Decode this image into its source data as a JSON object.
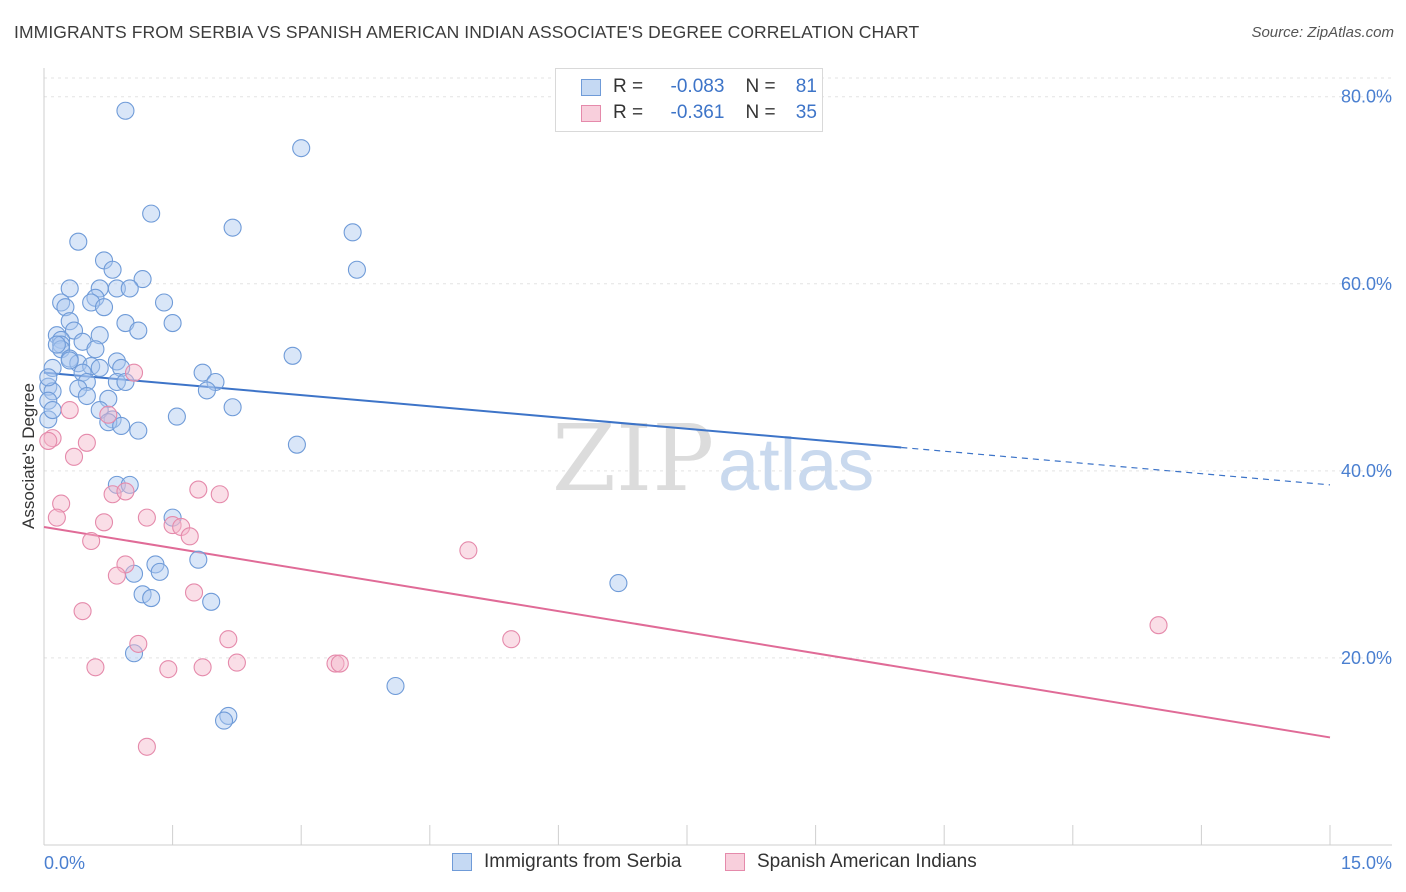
{
  "title": "IMMIGRANTS FROM SERBIA VS SPANISH AMERICAN INDIAN ASSOCIATE'S DEGREE CORRELATION CHART",
  "source": "Source: ZipAtlas.com",
  "watermark": {
    "zip": "ZIP",
    "atlas": "atlas"
  },
  "colors": {
    "blue": "#3d74c8",
    "blue_fill": "#aac8ef",
    "pink": "#e06b97",
    "pink_fill": "#f5b6ca",
    "axis_text": "#4a7fd0"
  },
  "legend_top": {
    "rows": [
      {
        "r_label": "R =",
        "r_value": "-0.083",
        "n_label": "N =",
        "n_value": "81"
      },
      {
        "r_label": "R =",
        "r_value": "-0.361",
        "n_label": "N =",
        "n_value": "35"
      }
    ]
  },
  "legend_bottom": {
    "series1": "Immigrants from Serbia",
    "series2": "Spanish American Indians"
  },
  "chart_data": {
    "type": "scatter",
    "title": "IMMIGRANTS FROM SERBIA VS SPANISH AMERICAN INDIAN ASSOCIATE'S DEGREE CORRELATION CHART",
    "xlabel": "",
    "ylabel": "Associate's Degree",
    "xlim": [
      0,
      15
    ],
    "ylim": [
      0,
      82
    ],
    "x_tick_labels": [
      "0.0%",
      "15.0%"
    ],
    "y_ticks": [
      20,
      40,
      60,
      80
    ],
    "y_tick_labels": [
      "20.0%",
      "40.0%",
      "60.0%",
      "80.0%"
    ],
    "grid": true,
    "series": [
      {
        "name": "Immigrants from Serbia",
        "color": "#3d74c8",
        "R": -0.083,
        "N": 81,
        "trend": {
          "x0": 0,
          "y0": 50.5,
          "x1": 10.0,
          "y1": 42.5,
          "dashed_to_x": 15,
          "dashed_to_y": 38.5
        },
        "points": [
          [
            0.95,
            78.5
          ],
          [
            3.0,
            74.5
          ],
          [
            1.25,
            67.5
          ],
          [
            2.2,
            66.0
          ],
          [
            3.6,
            65.5
          ],
          [
            0.4,
            64.5
          ],
          [
            0.7,
            62.5
          ],
          [
            0.8,
            61.5
          ],
          [
            3.65,
            61.5
          ],
          [
            1.15,
            60.5
          ],
          [
            0.65,
            59.5
          ],
          [
            0.3,
            59.5
          ],
          [
            0.85,
            59.5
          ],
          [
            1.0,
            59.5
          ],
          [
            0.6,
            58.5
          ],
          [
            0.55,
            58.0
          ],
          [
            0.2,
            58.0
          ],
          [
            0.25,
            57.5
          ],
          [
            0.7,
            57.5
          ],
          [
            1.4,
            58.0
          ],
          [
            1.5,
            55.8
          ],
          [
            0.3,
            56.0
          ],
          [
            0.95,
            55.8
          ],
          [
            0.35,
            55.0
          ],
          [
            1.1,
            55.0
          ],
          [
            0.15,
            54.5
          ],
          [
            0.2,
            54.0
          ],
          [
            0.65,
            54.5
          ],
          [
            0.45,
            53.8
          ],
          [
            0.2,
            53.5
          ],
          [
            0.2,
            53.0
          ],
          [
            0.6,
            53.0
          ],
          [
            2.9,
            52.3
          ],
          [
            0.3,
            52.0
          ],
          [
            0.85,
            51.7
          ],
          [
            0.4,
            51.5
          ],
          [
            0.55,
            51.2
          ],
          [
            0.9,
            51.0
          ],
          [
            0.1,
            51.0
          ],
          [
            0.65,
            51.0
          ],
          [
            0.45,
            50.5
          ],
          [
            1.85,
            50.5
          ],
          [
            0.5,
            49.5
          ],
          [
            0.85,
            49.5
          ],
          [
            0.95,
            49.5
          ],
          [
            2.0,
            49.5
          ],
          [
            0.05,
            49.0
          ],
          [
            0.4,
            48.8
          ],
          [
            1.9,
            48.6
          ],
          [
            0.1,
            48.5
          ],
          [
            0.75,
            47.7
          ],
          [
            0.05,
            47.5
          ],
          [
            2.2,
            46.8
          ],
          [
            0.65,
            46.5
          ],
          [
            1.55,
            45.8
          ],
          [
            0.8,
            45.5
          ],
          [
            0.75,
            45.2
          ],
          [
            0.9,
            44.8
          ],
          [
            1.1,
            44.3
          ],
          [
            2.95,
            42.8
          ],
          [
            0.85,
            38.5
          ],
          [
            1.0,
            38.5
          ],
          [
            1.5,
            35.0
          ],
          [
            1.8,
            30.5
          ],
          [
            1.3,
            30.0
          ],
          [
            1.35,
            29.2
          ],
          [
            1.05,
            29.0
          ],
          [
            6.7,
            28.0
          ],
          [
            1.15,
            26.8
          ],
          [
            1.25,
            26.4
          ],
          [
            1.95,
            26.0
          ],
          [
            1.05,
            20.5
          ],
          [
            4.1,
            17.0
          ],
          [
            2.15,
            13.8
          ],
          [
            2.1,
            13.3
          ],
          [
            0.05,
            45.5
          ],
          [
            0.05,
            50.0
          ],
          [
            0.15,
            53.5
          ],
          [
            0.3,
            51.8
          ],
          [
            0.1,
            46.5
          ],
          [
            0.5,
            48.0
          ]
        ]
      },
      {
        "name": "Spanish American Indians",
        "color": "#e06b97",
        "R": -0.361,
        "N": 35,
        "trend": {
          "x0": 0,
          "y0": 34.0,
          "x1": 15,
          "y1": 11.5
        },
        "points": [
          [
            1.05,
            50.5
          ],
          [
            0.3,
            46.5
          ],
          [
            0.75,
            46.0
          ],
          [
            0.1,
            43.5
          ],
          [
            0.05,
            43.2
          ],
          [
            0.5,
            43.0
          ],
          [
            0.35,
            41.5
          ],
          [
            1.8,
            38.0
          ],
          [
            2.05,
            37.5
          ],
          [
            0.8,
            37.5
          ],
          [
            0.95,
            37.8
          ],
          [
            0.2,
            36.5
          ],
          [
            0.15,
            35.0
          ],
          [
            1.2,
            35.0
          ],
          [
            0.7,
            34.5
          ],
          [
            1.5,
            34.2
          ],
          [
            1.6,
            34.0
          ],
          [
            1.7,
            33.0
          ],
          [
            0.55,
            32.5
          ],
          [
            4.95,
            31.5
          ],
          [
            0.95,
            30.0
          ],
          [
            0.85,
            28.8
          ],
          [
            1.75,
            27.0
          ],
          [
            0.45,
            25.0
          ],
          [
            13.0,
            23.5
          ],
          [
            2.15,
            22.0
          ],
          [
            5.45,
            22.0
          ],
          [
            1.1,
            21.5
          ],
          [
            2.25,
            19.5
          ],
          [
            3.4,
            19.4
          ],
          [
            3.45,
            19.4
          ],
          [
            0.6,
            19.0
          ],
          [
            1.45,
            18.8
          ],
          [
            1.85,
            19.0
          ],
          [
            1.2,
            10.5
          ]
        ]
      }
    ]
  }
}
